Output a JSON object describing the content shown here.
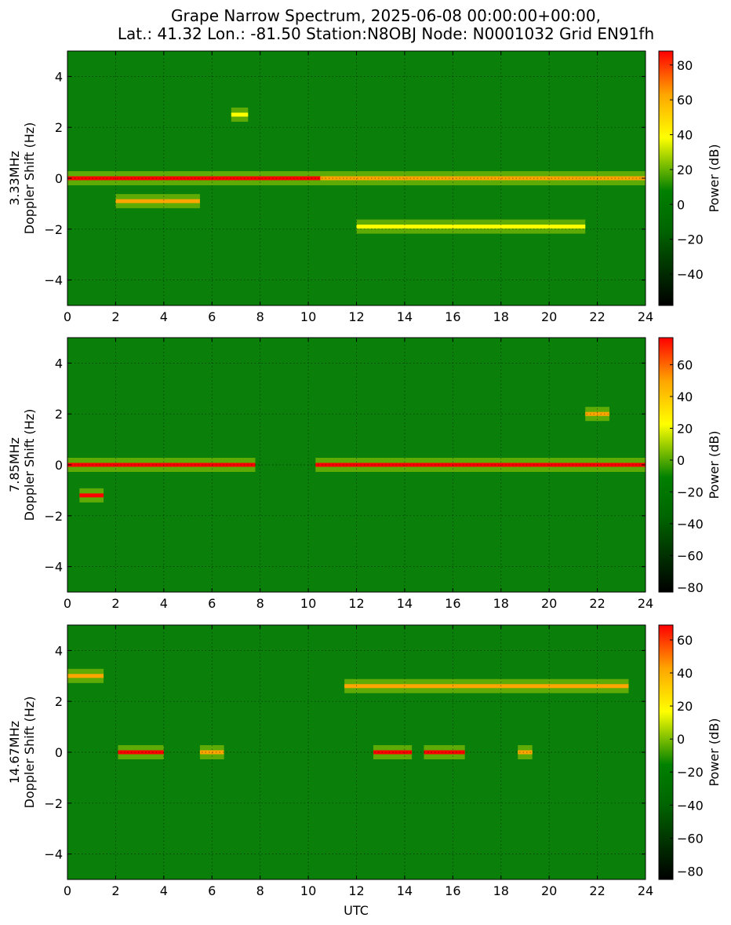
{
  "figure": {
    "title_line1": "Grape Narrow Spectrum, 2025-06-08 00:00:00+00:00,",
    "title_line2": "Lat.: 41.32 Lon.: -81.50 Station:N8OBJ Node: N0001032 Grid EN91fh",
    "xlabel": "UTC"
  },
  "colors": {
    "colormap": [
      "#000000",
      "#006600",
      "#008000",
      "#ffff00",
      "#ffa500",
      "#ff0000"
    ],
    "background": "#ffffff",
    "grid": "#000000"
  },
  "chart_data": [
    {
      "type": "heatmap",
      "frequency_label": "3.33MHz",
      "ylabel": "Doppler Shift (Hz)",
      "colorbar_label": "Power (dB)",
      "xlim": [
        0,
        24
      ],
      "ylim": [
        -5,
        5
      ],
      "x_ticks": [
        "0",
        "2",
        "4",
        "6",
        "8",
        "10",
        "12",
        "14",
        "16",
        "18",
        "20",
        "22",
        "24"
      ],
      "y_ticks": [
        "−4",
        "−2",
        "0",
        "2",
        "4"
      ],
      "clim": [
        -58,
        88
      ],
      "colorbar_ticks": [
        "−40",
        "−20",
        "0",
        "20",
        "40",
        "60",
        "80"
      ],
      "grid": true,
      "features": [
        {
          "x_start": 0,
          "x_end": 10.5,
          "doppler_hz": 0,
          "peak_db": 85
        },
        {
          "x_start": 10.5,
          "x_end": 24,
          "doppler_hz": 0,
          "peak_db": 40
        },
        {
          "x_start": 2.0,
          "x_end": 5.5,
          "doppler_hz": -0.9,
          "peak_db": 40
        },
        {
          "x_start": 6.8,
          "x_end": 7.5,
          "doppler_hz": 2.5,
          "peak_db": 35
        },
        {
          "x_start": 12.0,
          "x_end": 21.5,
          "doppler_hz": -1.9,
          "peak_db": 20
        }
      ]
    },
    {
      "type": "heatmap",
      "frequency_label": "7.85MHz",
      "ylabel": "Doppler Shift (Hz)",
      "colorbar_label": "Power (dB)",
      "xlim": [
        0,
        24
      ],
      "ylim": [
        -5,
        5
      ],
      "x_ticks": [
        "0",
        "2",
        "4",
        "6",
        "8",
        "10",
        "12",
        "14",
        "16",
        "18",
        "20",
        "22",
        "24"
      ],
      "y_ticks": [
        "−4",
        "−2",
        "0",
        "2",
        "4"
      ],
      "clim": [
        -83,
        77
      ],
      "colorbar_ticks": [
        "−80",
        "−60",
        "−40",
        "−20",
        "0",
        "20",
        "40",
        "60"
      ],
      "grid": true,
      "features": [
        {
          "x_start": 0,
          "x_end": 7.8,
          "doppler_hz": 0,
          "peak_db": 75
        },
        {
          "x_start": 10.3,
          "x_end": 24,
          "doppler_hz": 0,
          "peak_db": 75
        },
        {
          "x_start": 0.5,
          "x_end": 1.5,
          "doppler_hz": -1.2,
          "peak_db": 60
        },
        {
          "x_start": 21.5,
          "x_end": 22.5,
          "doppler_hz": 2.0,
          "peak_db": 45
        }
      ]
    },
    {
      "type": "heatmap",
      "frequency_label": "14.67MHz",
      "ylabel": "Doppler Shift (Hz)",
      "colorbar_label": "Power (dB)",
      "xlim": [
        0,
        24
      ],
      "ylim": [
        -5,
        5
      ],
      "x_ticks": [
        "0",
        "2",
        "4",
        "6",
        "8",
        "10",
        "12",
        "14",
        "16",
        "18",
        "20",
        "22",
        "24"
      ],
      "y_ticks": [
        "−4",
        "−2",
        "0",
        "2",
        "4"
      ],
      "clim": [
        -85,
        69
      ],
      "colorbar_ticks": [
        "−80",
        "−60",
        "−40",
        "−20",
        "0",
        "20",
        "40",
        "60"
      ],
      "grid": true,
      "features": [
        {
          "x_start": 2.1,
          "x_end": 4.0,
          "doppler_hz": 0,
          "peak_db": 65
        },
        {
          "x_start": 5.5,
          "x_end": 6.5,
          "doppler_hz": 0,
          "peak_db": 35
        },
        {
          "x_start": 12.7,
          "x_end": 14.3,
          "doppler_hz": 0,
          "peak_db": 65
        },
        {
          "x_start": 14.8,
          "x_end": 16.5,
          "doppler_hz": 0,
          "peak_db": 65
        },
        {
          "x_start": 18.7,
          "x_end": 19.3,
          "doppler_hz": 0,
          "peak_db": 35
        },
        {
          "x_start": 11.5,
          "x_end": 23.3,
          "doppler_hz": 2.6,
          "peak_db": 30
        },
        {
          "x_start": 0,
          "x_end": 1.5,
          "doppler_hz": 3.0,
          "peak_db": 25
        }
      ]
    }
  ]
}
